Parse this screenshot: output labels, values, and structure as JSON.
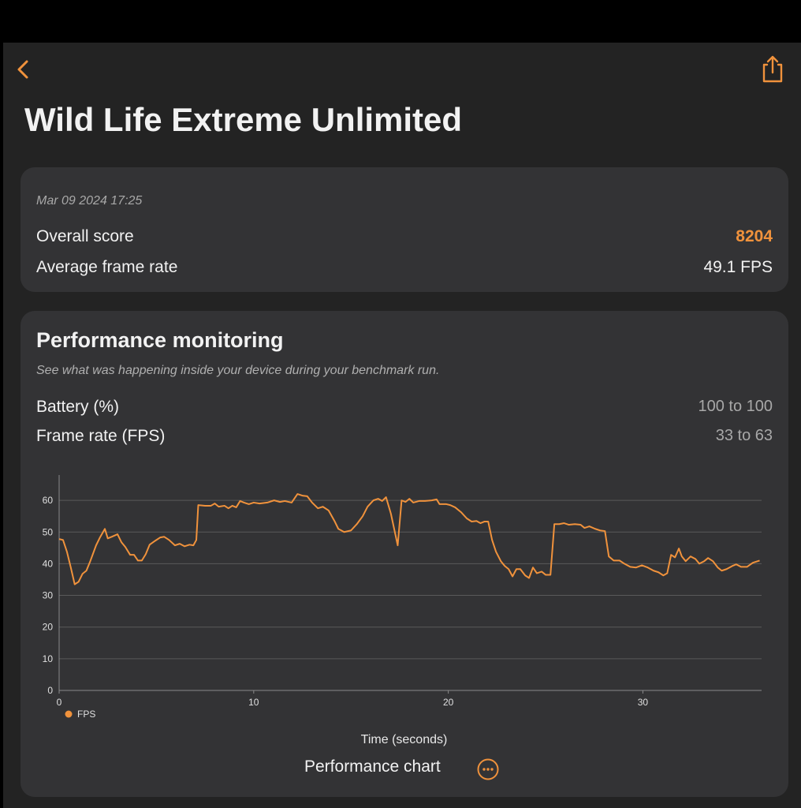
{
  "header": {
    "title": "Wild Life Extreme Unlimited"
  },
  "summary": {
    "date": "Mar 09 2024 17:25",
    "rows": [
      {
        "label": "Overall score",
        "value": "8204"
      },
      {
        "label": "Average frame rate",
        "value": "49.1 FPS"
      }
    ]
  },
  "performance": {
    "title": "Performance monitoring",
    "subtitle": "See what was happening inside your device during your benchmark run.",
    "rows": [
      {
        "label": "Battery (%)",
        "value": "100 to 100"
      },
      {
        "label": "Frame rate (FPS)",
        "value": "33 to 63"
      }
    ],
    "button": "Performance chart"
  },
  "chart_data": {
    "type": "line",
    "xlabel": "Time (seconds)",
    "legend": "bottom-left",
    "grid": true,
    "xlim": [
      0,
      36.1
    ],
    "ylim": [
      0,
      68
    ],
    "xticks": [
      0,
      10,
      20,
      30
    ],
    "yticks": [
      0,
      10,
      20,
      30,
      40,
      50,
      60
    ],
    "x": [
      0,
      0.2,
      0.4,
      0.6,
      0.8,
      1.0,
      1.2,
      1.4,
      1.6,
      1.9,
      2.1,
      2.35,
      2.5,
      2.7,
      3.0,
      3.2,
      3.4,
      3.65,
      3.85,
      4.05,
      4.25,
      4.45,
      4.65,
      4.95,
      5.2,
      5.4,
      5.65,
      5.95,
      6.2,
      6.45,
      6.7,
      6.9,
      7.05,
      7.15,
      7.5,
      7.8,
      8.0,
      8.2,
      8.5,
      8.7,
      8.9,
      9.1,
      9.3,
      9.5,
      9.75,
      10.0,
      10.3,
      10.7,
      11.05,
      11.35,
      11.6,
      11.95,
      12.25,
      12.5,
      12.75,
      13.0,
      13.3,
      13.55,
      13.85,
      14.15,
      14.35,
      14.65,
      15.0,
      15.3,
      15.6,
      15.85,
      16.15,
      16.4,
      16.6,
      16.8,
      17.05,
      17.4,
      17.6,
      17.8,
      18.0,
      18.2,
      18.5,
      18.8,
      19.15,
      19.4,
      19.55,
      19.9,
      20.1,
      20.35,
      20.65,
      20.95,
      21.2,
      21.45,
      21.65,
      21.85,
      22.05,
      22.25,
      22.45,
      22.7,
      22.9,
      23.1,
      23.3,
      23.5,
      23.7,
      23.95,
      24.15,
      24.35,
      24.55,
      24.8,
      25.0,
      25.25,
      25.45,
      25.7,
      25.95,
      26.2,
      26.5,
      26.8,
      27.0,
      27.25,
      27.55,
      27.8,
      28.05,
      28.25,
      28.5,
      28.8,
      29.05,
      29.35,
      29.65,
      29.95,
      30.25,
      30.55,
      30.8,
      31.05,
      31.25,
      31.45,
      31.65,
      31.85,
      32.0,
      32.2,
      32.45,
      32.7,
      32.9,
      33.15,
      33.35,
      33.6,
      33.85,
      34.05,
      34.3,
      34.6,
      34.8,
      35.05,
      35.35,
      35.65,
      35.9,
      36.0
    ],
    "series": [
      {
        "name": "FPS",
        "color": "#f0923c",
        "values": [
          47.8,
          47.5,
          43.8,
          38.8,
          33.5,
          34.3,
          36.8,
          37.8,
          40.8,
          45.8,
          48.3,
          51,
          48,
          48.5,
          49.3,
          46.8,
          45.3,
          42.8,
          42.8,
          41,
          41,
          43,
          46,
          47.3,
          48.3,
          48.5,
          47.5,
          45.8,
          46.3,
          45.5,
          46,
          45.8,
          47.5,
          58.5,
          58.3,
          58.3,
          59,
          58,
          58.3,
          57.5,
          58.3,
          57.8,
          59.8,
          59.3,
          58.8,
          59.3,
          59,
          59.3,
          60,
          59.5,
          59.8,
          59.3,
          62,
          61.5,
          61.3,
          59.3,
          57.5,
          58,
          56.8,
          53.5,
          51,
          50,
          50.5,
          52.5,
          55,
          58,
          60,
          60.5,
          59.8,
          61,
          55.8,
          45.8,
          60,
          59.5,
          60.5,
          59.3,
          59.8,
          59.8,
          60,
          60.3,
          58.8,
          58.8,
          58.5,
          57.8,
          56.3,
          54.3,
          53.3,
          53.5,
          52.8,
          53.3,
          53.3,
          47.5,
          43.8,
          40.8,
          39.3,
          38.3,
          36,
          38.3,
          38.3,
          36.3,
          35.5,
          38.8,
          37,
          37.5,
          36.5,
          36.5,
          52.5,
          52.5,
          52.8,
          52.3,
          52.5,
          52.3,
          51.3,
          51.8,
          51,
          50.5,
          50.3,
          42.3,
          41,
          41,
          40,
          39,
          38.8,
          39.5,
          38.8,
          37.8,
          37.3,
          36.3,
          37,
          42.8,
          42,
          44.8,
          42.3,
          40.8,
          42.3,
          41.5,
          40,
          40.8,
          41.8,
          40.8,
          38.8,
          37.8,
          38.3,
          39.3,
          39.8,
          39,
          39,
          40.3,
          40.8,
          41
        ]
      }
    ]
  }
}
